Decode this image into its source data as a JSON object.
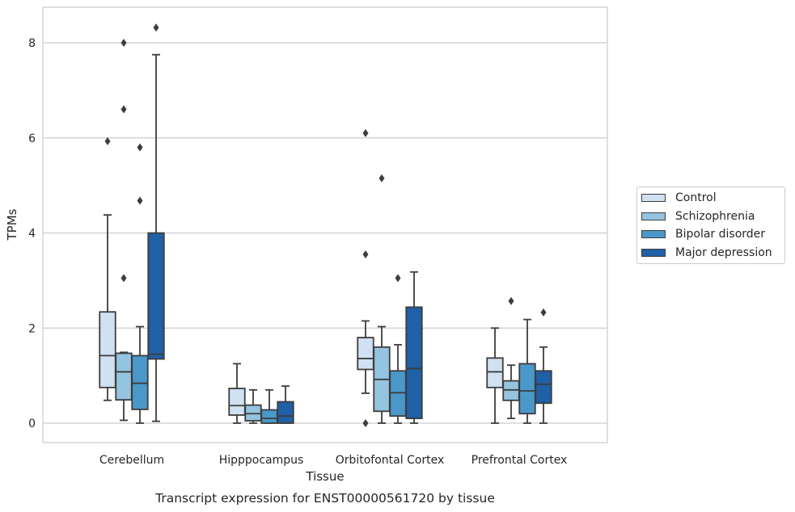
{
  "chart_data": {
    "type": "box",
    "title": "Transcript expression for ENST00000561720 by tissue",
    "xlabel": "Tissue",
    "ylabel": "TPMs",
    "ylim": [
      -0.4,
      8.75
    ],
    "yticks": [
      0,
      2,
      4,
      6,
      8
    ],
    "categories": [
      "Cerebellum",
      "Hipppocampus",
      "Orbitofontal Cortex",
      "Prefrontal Cortex"
    ],
    "grid": "horizontal",
    "legend_position": "right",
    "series": [
      {
        "name": "Control",
        "color": "#d0e1f2",
        "boxes": [
          {
            "whislo": 0.48,
            "q1": 0.75,
            "med": 1.42,
            "q3": 2.34,
            "whishi": 4.38,
            "fliers": [
              5.93
            ]
          },
          {
            "whislo": 0.0,
            "q1": 0.17,
            "med": 0.37,
            "q3": 0.73,
            "whishi": 1.25,
            "fliers": []
          },
          {
            "whislo": 0.63,
            "q1": 1.13,
            "med": 1.36,
            "q3": 1.8,
            "whishi": 2.15,
            "fliers": [
              6.1,
              3.55,
              0.0
            ]
          },
          {
            "whislo": 0.0,
            "q1": 0.75,
            "med": 1.08,
            "q3": 1.37,
            "whishi": 2.0,
            "fliers": []
          }
        ]
      },
      {
        "name": "Schizophrenia",
        "color": "#94c4df",
        "boxes": [
          {
            "whislo": 0.06,
            "q1": 0.49,
            "med": 1.08,
            "q3": 1.47,
            "whishi": 1.49,
            "fliers": [
              8.0,
              6.6,
              3.05
            ]
          },
          {
            "whislo": 0.0,
            "q1": 0.05,
            "med": 0.2,
            "q3": 0.38,
            "whishi": 0.7,
            "fliers": []
          },
          {
            "whislo": 0.0,
            "q1": 0.25,
            "med": 0.92,
            "q3": 1.6,
            "whishi": 2.03,
            "fliers": [
              5.15
            ]
          },
          {
            "whislo": 0.1,
            "q1": 0.48,
            "med": 0.7,
            "q3": 0.89,
            "whishi": 1.22,
            "fliers": [
              2.57
            ]
          }
        ]
      },
      {
        "name": "Bipolar disorder",
        "color": "#4a98c9",
        "boxes": [
          {
            "whislo": 0.0,
            "q1": 0.29,
            "med": 0.84,
            "q3": 1.42,
            "whishi": 2.03,
            "fliers": [
              5.8,
              4.68
            ]
          },
          {
            "whislo": 0.0,
            "q1": 0.0,
            "med": 0.1,
            "q3": 0.28,
            "whishi": 0.7,
            "fliers": []
          },
          {
            "whislo": 0.0,
            "q1": 0.15,
            "med": 0.64,
            "q3": 1.1,
            "whishi": 1.65,
            "fliers": [
              3.05
            ]
          },
          {
            "whislo": 0.0,
            "q1": 0.2,
            "med": 0.68,
            "q3": 1.25,
            "whishi": 2.18,
            "fliers": []
          }
        ]
      },
      {
        "name": "Major depression",
        "color": "#2060a7",
        "boxes": [
          {
            "whislo": 0.04,
            "q1": 1.35,
            "med": 1.45,
            "q3": 4.0,
            "whishi": 7.75,
            "fliers": [
              8.32
            ]
          },
          {
            "whislo": 0.0,
            "q1": 0.0,
            "med": 0.15,
            "q3": 0.45,
            "whishi": 0.78,
            "fliers": []
          },
          {
            "whislo": 0.0,
            "q1": 0.1,
            "med": 1.15,
            "q3": 2.44,
            "whishi": 3.18,
            "fliers": []
          },
          {
            "whislo": 0.0,
            "q1": 0.42,
            "med": 0.82,
            "q3": 1.1,
            "whishi": 1.6,
            "fliers": [
              2.33
            ]
          }
        ]
      }
    ]
  }
}
